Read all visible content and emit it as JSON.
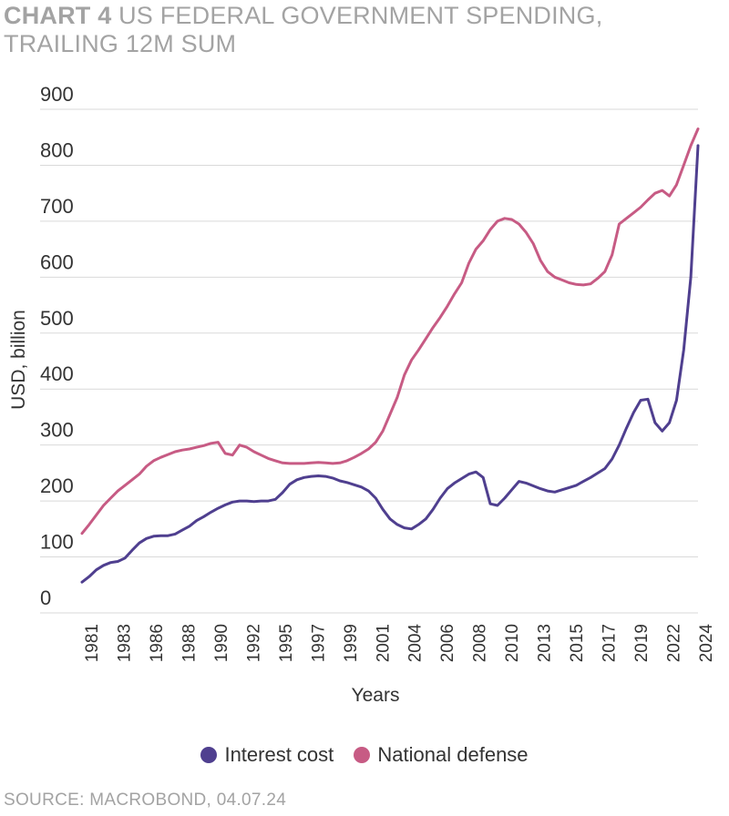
{
  "header": {
    "title_prefix": "CHART 4",
    "title_rest": "US FEDERAL GOVERNMENT SPENDING,",
    "title_line2": "TRAILING 12M SUM"
  },
  "footer": {
    "source": "SOURCE: MACROBOND, 04.07.24"
  },
  "legend": {
    "items": [
      {
        "label": "Interest cost",
        "color": "#4f3f8f"
      },
      {
        "label": "National defense",
        "color": "#c75b84"
      }
    ]
  },
  "chart_data": {
    "type": "line",
    "title": "CHART 4 US FEDERAL GOVERNMENT SPENDING, TRAILING 12M SUM",
    "xlabel": "Years",
    "ylabel": "USD, billion",
    "ylim": [
      0,
      900
    ],
    "xlim": [
      1981,
      2024
    ],
    "yticks": [
      0,
      100,
      200,
      300,
      400,
      500,
      600,
      700,
      800,
      900
    ],
    "xtick_labels": [
      "1981",
      "1983",
      "1986",
      "1988",
      "1990",
      "1992",
      "1995",
      "1997",
      "1999",
      "2001",
      "2004",
      "2006",
      "2008",
      "2010",
      "2013",
      "2015",
      "2017",
      "2019",
      "2022",
      "2024"
    ],
    "grid": true,
    "legend_position": "bottom",
    "series": [
      {
        "name": "Interest cost",
        "color": "#4f3f8f",
        "x": [
          1981.0,
          1981.5,
          1982.0,
          1982.5,
          1983.0,
          1983.5,
          1984.0,
          1984.5,
          1985.0,
          1985.5,
          1986.0,
          1986.5,
          1987.0,
          1987.5,
          1988.0,
          1988.5,
          1989.0,
          1989.5,
          1990.0,
          1990.5,
          1991.0,
          1991.5,
          1992.0,
          1992.5,
          1993.0,
          1993.5,
          1994.0,
          1994.5,
          1995.0,
          1995.5,
          1996.0,
          1996.5,
          1997.0,
          1997.5,
          1998.0,
          1998.5,
          1999.0,
          1999.5,
          2000.0,
          2000.5,
          2001.0,
          2001.5,
          2002.0,
          2002.5,
          2003.0,
          2003.5,
          2004.0,
          2004.5,
          2005.0,
          2005.5,
          2006.0,
          2006.5,
          2007.0,
          2007.5,
          2008.0,
          2008.5,
          2009.0,
          2009.5,
          2010.0,
          2010.5,
          2011.0,
          2011.5,
          2012.0,
          2012.5,
          2013.0,
          2013.5,
          2014.0,
          2014.5,
          2015.0,
          2015.5,
          2016.0,
          2016.5,
          2017.0,
          2017.5,
          2018.0,
          2018.5,
          2019.0,
          2019.5,
          2020.0,
          2020.5,
          2021.0,
          2021.5,
          2022.0,
          2022.5,
          2023.0,
          2023.5,
          2024.0
        ],
        "y": [
          55,
          65,
          77,
          85,
          90,
          92,
          98,
          112,
          125,
          133,
          137,
          138,
          138,
          141,
          148,
          155,
          165,
          172,
          180,
          187,
          193,
          198,
          200,
          200,
          199,
          200,
          200,
          203,
          215,
          230,
          238,
          242,
          244,
          245,
          244,
          241,
          236,
          233,
          229,
          225,
          218,
          205,
          185,
          168,
          158,
          152,
          150,
          158,
          168,
          185,
          205,
          222,
          232,
          240,
          248,
          252,
          242,
          195,
          192,
          205,
          220,
          235,
          232,
          227,
          222,
          218,
          216,
          220,
          224,
          228,
          235,
          242,
          250,
          258,
          275,
          300,
          330,
          358,
          380,
          382,
          340,
          325,
          340,
          380,
          470,
          600,
          835
        ]
      },
      {
        "name": "National defense",
        "color": "#c75b84",
        "x": [
          1981.0,
          1981.5,
          1982.0,
          1982.5,
          1983.0,
          1983.5,
          1984.0,
          1984.5,
          1985.0,
          1985.5,
          1986.0,
          1986.5,
          1987.0,
          1987.5,
          1988.0,
          1988.5,
          1989.0,
          1989.5,
          1990.0,
          1990.5,
          1991.0,
          1991.5,
          1992.0,
          1992.5,
          1993.0,
          1993.5,
          1994.0,
          1994.5,
          1995.0,
          1995.5,
          1996.0,
          1996.5,
          1997.0,
          1997.5,
          1998.0,
          1998.5,
          1999.0,
          1999.5,
          2000.0,
          2000.5,
          2001.0,
          2001.5,
          2002.0,
          2002.5,
          2003.0,
          2003.5,
          2004.0,
          2004.5,
          2005.0,
          2005.5,
          2006.0,
          2006.5,
          2007.0,
          2007.5,
          2008.0,
          2008.5,
          2009.0,
          2009.5,
          2010.0,
          2010.5,
          2011.0,
          2011.5,
          2012.0,
          2012.5,
          2013.0,
          2013.5,
          2014.0,
          2014.5,
          2015.0,
          2015.5,
          2016.0,
          2016.5,
          2017.0,
          2017.5,
          2018.0,
          2018.5,
          2019.0,
          2019.5,
          2020.0,
          2020.5,
          2021.0,
          2021.5,
          2022.0,
          2022.5,
          2023.0,
          2023.5,
          2024.0
        ],
        "y": [
          142,
          158,
          175,
          192,
          205,
          218,
          228,
          238,
          248,
          262,
          272,
          278,
          283,
          288,
          291,
          293,
          296,
          299,
          303,
          305,
          285,
          282,
          300,
          296,
          288,
          282,
          276,
          272,
          268,
          267,
          267,
          267,
          268,
          269,
          268,
          267,
          268,
          272,
          278,
          285,
          293,
          305,
          325,
          355,
          385,
          425,
          452,
          470,
          490,
          510,
          528,
          548,
          570,
          590,
          625,
          650,
          665,
          685,
          700,
          705,
          703,
          695,
          680,
          660,
          630,
          610,
          600,
          595,
          590,
          587,
          586,
          588,
          598,
          610,
          640,
          695,
          705,
          715,
          725,
          738,
          750,
          755,
          745,
          765,
          800,
          835,
          865
        ]
      }
    ]
  }
}
